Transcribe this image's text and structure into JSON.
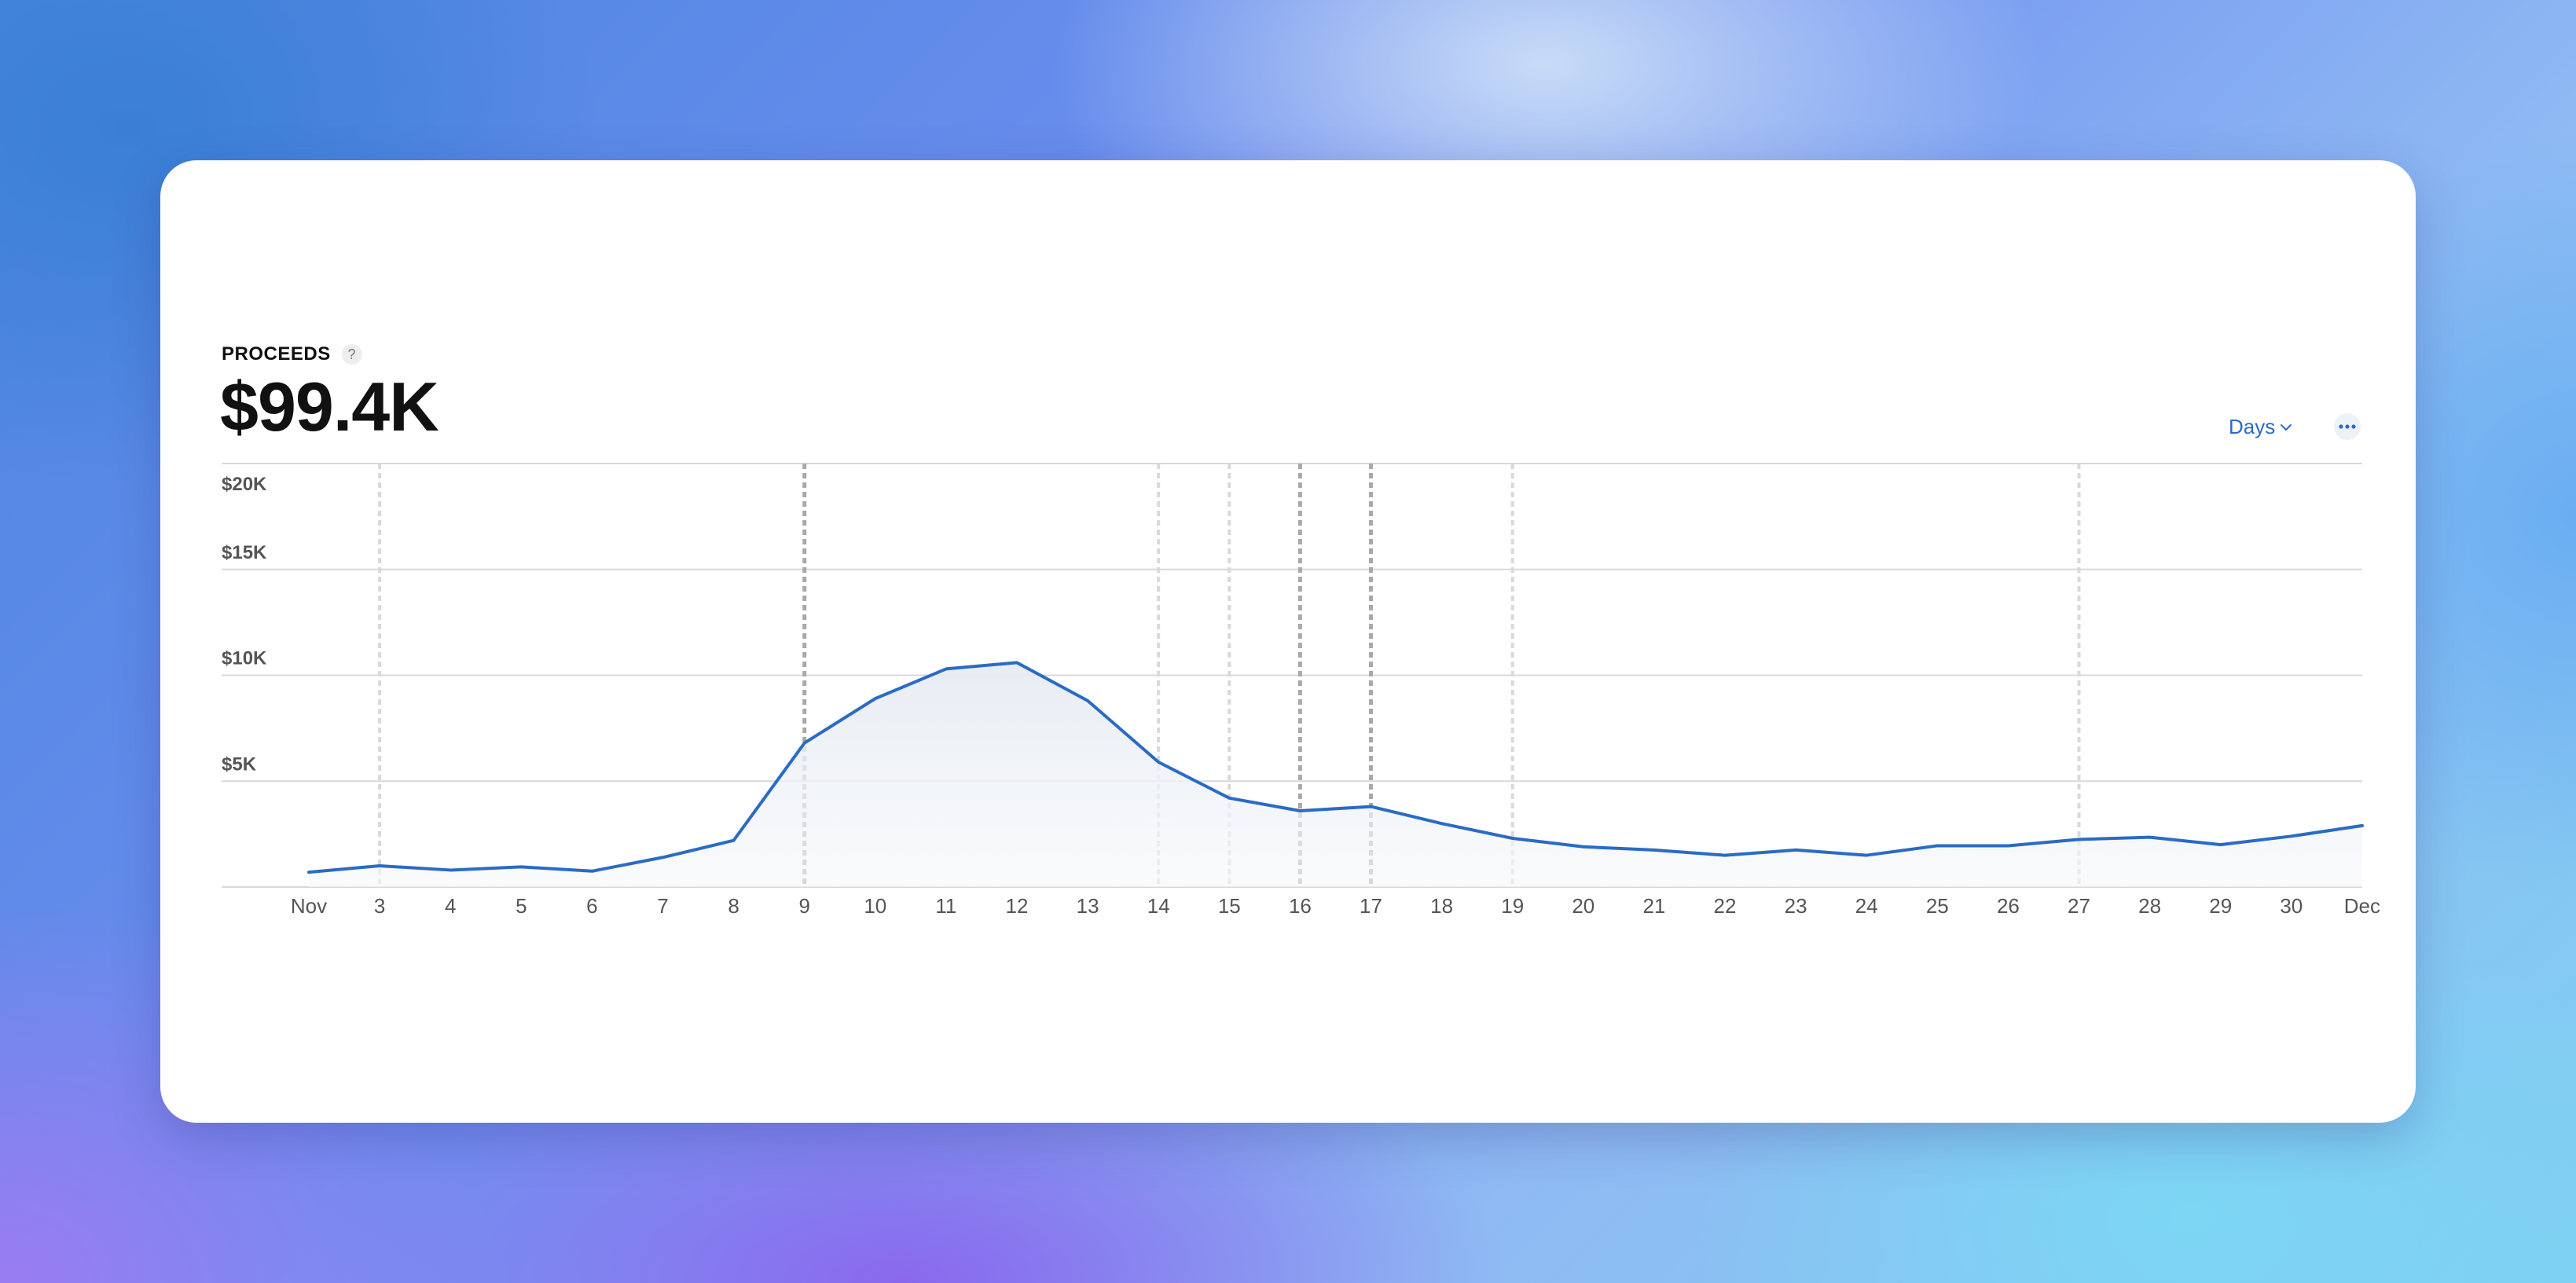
{
  "card": {
    "metric_label": "PROCEEDS",
    "help": "?",
    "metric_value": "$99.4K",
    "period_select": "Days",
    "more_icon": "ellipsis-icon"
  },
  "colors": {
    "line": "#2a6bc4",
    "area_top": "#e8edf4",
    "grid": "#d8d8d8",
    "marker_light": "#d9d9d9",
    "marker_dark": "#a9a9a9"
  },
  "chart_data": {
    "type": "line",
    "x_labels": [
      "Nov",
      "3",
      "4",
      "5",
      "6",
      "7",
      "8",
      "9",
      "10",
      "11",
      "12",
      "13",
      "14",
      "15",
      "16",
      "17",
      "18",
      "19",
      "20",
      "21",
      "22",
      "23",
      "24",
      "25",
      "26",
      "27",
      "28",
      "29",
      "30",
      "Dec"
    ],
    "values": [
      700,
      1000,
      800,
      950,
      750,
      1400,
      2200,
      6800,
      8900,
      10300,
      10600,
      8800,
      5900,
      4200,
      3600,
      3800,
      3000,
      2300,
      1900,
      1750,
      1500,
      1750,
      1500,
      1950,
      1950,
      2250,
      2350,
      2000,
      2400,
      2900
    ],
    "y_ticks": [
      {
        "value": 5000,
        "label": "$5K"
      },
      {
        "value": 10000,
        "label": "$10K"
      },
      {
        "value": 15000,
        "label": "$15K"
      },
      {
        "value": 20000,
        "label": "$20K"
      }
    ],
    "ylim": [
      0,
      20000
    ],
    "grid": true,
    "area_fill": true,
    "marker_lines": [
      {
        "x_label": "3",
        "style": "light"
      },
      {
        "x_label": "9",
        "style": "dark"
      },
      {
        "x_label": "14",
        "style": "light"
      },
      {
        "x_label": "15",
        "style": "light"
      },
      {
        "x_label": "16",
        "style": "dark"
      },
      {
        "x_label": "17",
        "style": "dark"
      },
      {
        "x_label": "19",
        "style": "light"
      },
      {
        "x_label": "27",
        "style": "light"
      }
    ]
  }
}
